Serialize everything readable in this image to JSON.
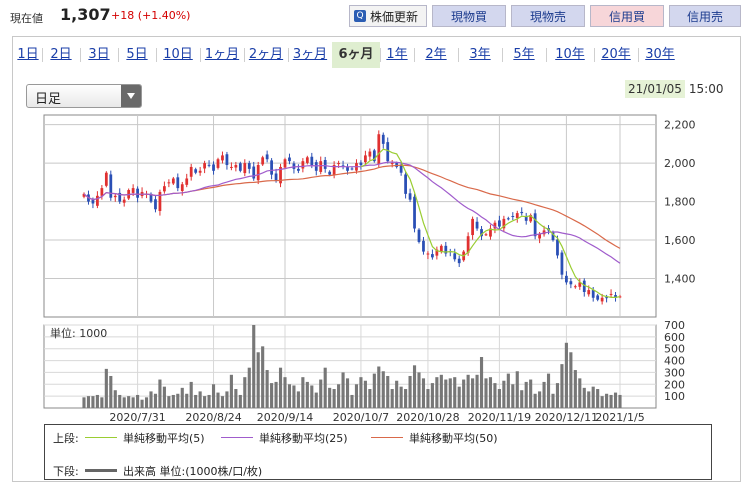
{
  "header": {
    "price_label": "現在値",
    "price_value": "1,307",
    "price_change": "+18 (+1.40%)",
    "update_button": "株価更新",
    "buttons": [
      "現物買",
      "現物売",
      "信用買",
      "信用売"
    ]
  },
  "tabs": [
    "1日",
    "2日",
    "3日",
    "5日",
    "10日",
    "1ヶ月",
    "2ヶ月",
    "3ヶ月",
    "6ヶ月",
    "1年",
    "2年",
    "3年",
    "5年",
    "10年",
    "20年",
    "30年"
  ],
  "active_tab": "6ヶ月",
  "select": {
    "value": "日足"
  },
  "datetime": {
    "date": "21/01/05",
    "time": "15:00"
  },
  "colors": {
    "up": "#e03030",
    "down": "#2a4fb5",
    "ma5": "#9acd32",
    "ma25": "#a05ccc",
    "ma50": "#d9694a",
    "volume": "#777777",
    "active_tab": "#dfeed0"
  },
  "chart_data": {
    "type": "candlestick",
    "price_axis": {
      "ylim": [
        1200,
        2250
      ],
      "ticks": [
        "2,200",
        "2,000",
        "1,800",
        "1,600",
        "1,400"
      ],
      "tick_values": [
        2200,
        2000,
        1800,
        1600,
        1400
      ]
    },
    "volume_axis": {
      "label": "単位: 1000",
      "ylim": [
        0,
        700
      ],
      "ticks": [
        "700",
        "600",
        "500",
        "400",
        "300",
        "200",
        "100"
      ],
      "tick_values": [
        700,
        600,
        500,
        400,
        300,
        200,
        100
      ]
    },
    "x_labels": [
      "2020/7/31",
      "2020/8/24",
      "2020/9/14",
      "2020/10/7",
      "2020/10/28",
      "2020/11/19",
      "2020/12/11",
      "2021/1/5"
    ],
    "close": [
      1840,
      1800,
      1790,
      1830,
      1870,
      1950,
      1820,
      1830,
      1800,
      1810,
      1860,
      1870,
      1820,
      1850,
      1840,
      1800,
      1760,
      1850,
      1880,
      1900,
      1920,
      1870,
      1890,
      1920,
      1980,
      1950,
      1960,
      2000,
      1990,
      1960,
      2020,
      2040,
      1990,
      1980,
      1990,
      1960,
      2000,
      1970,
      1920,
      1990,
      2030,
      2020,
      1940,
      1910,
      1980,
      2020,
      2010,
      1970,
      1960,
      2010,
      2030,
      1990,
      1960,
      2010,
      1970,
      1940,
      1990,
      2000,
      1980,
      1960,
      1970,
      2000,
      1990,
      2040,
      2060,
      2010,
      2150,
      2100,
      2010,
      2000,
      1980,
      1950,
      1840,
      1810,
      1660,
      1590,
      1540,
      1530,
      1510,
      1550,
      1570,
      1530,
      1540,
      1500,
      1480,
      1540,
      1620,
      1710,
      1660,
      1620,
      1630,
      1660,
      1690,
      1670,
      1710,
      1710,
      1720,
      1740,
      1740,
      1700,
      1730,
      1620,
      1630,
      1650,
      1650,
      1600,
      1520,
      1420,
      1380,
      1370,
      1360,
      1380,
      1330,
      1340,
      1300,
      1290,
      1300,
      1300,
      1320,
      1300,
      1307
    ],
    "volume": [
      90,
      100,
      100,
      110,
      90,
      330,
      270,
      150,
      110,
      90,
      100,
      90,
      110,
      70,
      90,
      140,
      120,
      240,
      180,
      100,
      110,
      120,
      170,
      120,
      220,
      110,
      140,
      100,
      110,
      200,
      130,
      100,
      140,
      280,
      160,
      110,
      260,
      340,
      700,
      470,
      520,
      320,
      210,
      220,
      340,
      260,
      200,
      190,
      140,
      260,
      220,
      190,
      130,
      240,
      340,
      170,
      160,
      200,
      300,
      250,
      110,
      200,
      260,
      230,
      160,
      290,
      350,
      310,
      270,
      160,
      230,
      180,
      160,
      270,
      360,
      300,
      250,
      160,
      210,
      260,
      280,
      240,
      250,
      260,
      180,
      240,
      280,
      250,
      280,
      430,
      250,
      260,
      210,
      160,
      230,
      290,
      200,
      310,
      150,
      220,
      240,
      120,
      140,
      220,
      290,
      120,
      210,
      370,
      550,
      470,
      320,
      250,
      170,
      140,
      180,
      160,
      100,
      120,
      110,
      130,
      110
    ]
  },
  "legend": {
    "upper_label": "上段:",
    "lower_label": "下段:",
    "items": [
      "単純移動平均(5)",
      "単純移動平均(25)",
      "単純移動平均(50)"
    ],
    "volume_item": "出来高 単位:(1000株/口/枚)"
  }
}
